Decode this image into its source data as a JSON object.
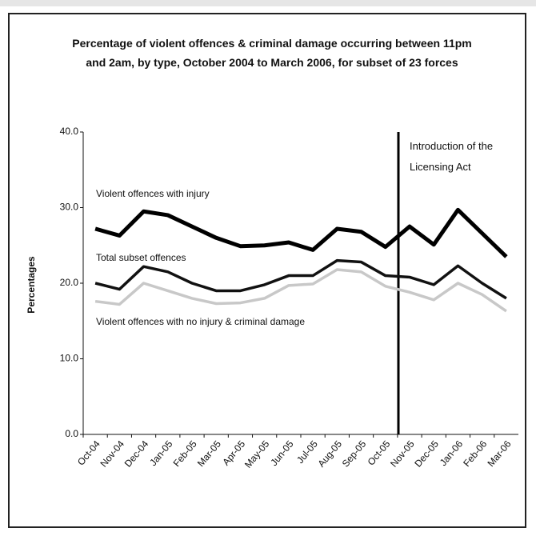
{
  "chart_data": {
    "type": "line",
    "title": "Percentage of violent offences & criminal damage occurring between 11pm and 2am, by type, October 2004 to March 2006, for subset of 23 forces",
    "y_label": "Percentages",
    "categories": [
      "Oct-04",
      "Nov-04",
      "Dec-04",
      "Jan-05",
      "Feb-05",
      "Mar-05",
      "Apr-05",
      "May-05",
      "Jun-05",
      "Jul-05",
      "Aug-05",
      "Sep-05",
      "Oct-05",
      "Nov-05",
      "Dec-05",
      "Jan-06",
      "Feb-06",
      "Mar-06"
    ],
    "series": [
      {
        "name": "Violent offences with injury",
        "color": "#000000",
        "values": [
          27.2,
          26.3,
          29.5,
          29.0,
          27.5,
          26.0,
          24.9,
          25.0,
          25.4,
          24.4,
          27.2,
          26.8,
          24.8,
          27.5,
          25.1,
          29.7,
          26.6,
          23.5
        ]
      },
      {
        "name": "Total subset offences",
        "color": "#111111",
        "values": [
          20.0,
          19.2,
          22.2,
          21.5,
          20.0,
          19.0,
          19.0,
          19.8,
          21.0,
          21.0,
          23.0,
          22.8,
          21.0,
          20.8,
          19.8,
          22.3,
          20.0,
          18.0
        ]
      },
      {
        "name": "Violent offences with no injury & criminal damage",
        "color": "#c8c8c8",
        "values": [
          17.6,
          17.2,
          20.0,
          19.0,
          18.0,
          17.3,
          17.4,
          18.0,
          19.7,
          19.9,
          21.8,
          21.5,
          19.6,
          18.8,
          17.8,
          20.0,
          18.5,
          16.3
        ]
      }
    ],
    "annotation": {
      "text": "Introduction of the Licensing Act",
      "x": "Nov-05"
    },
    "ylim": [
      0,
      40
    ],
    "yticks": [
      {
        "value": 0,
        "label": "0.0"
      },
      {
        "value": 10,
        "label": "10.0"
      },
      {
        "value": 20,
        "label": "20.0"
      },
      {
        "value": 30,
        "label": "30.0"
      },
      {
        "value": 40,
        "label": "40.0"
      }
    ]
  }
}
